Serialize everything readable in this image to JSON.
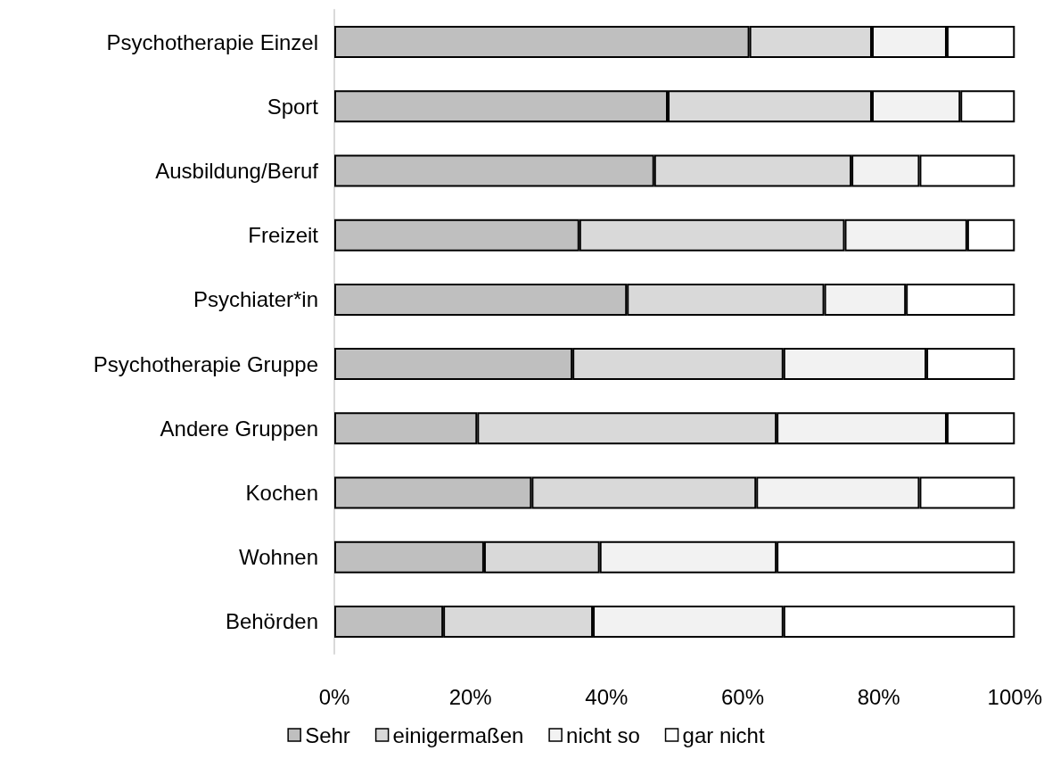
{
  "chart_data": {
    "type": "bar",
    "orientation": "horizontal",
    "stacked": true,
    "categories": [
      "Psychotherapie Einzel",
      "Sport",
      "Ausbildung/Beruf",
      "Freizeit",
      "Psychiater*in",
      "Psychotherapie Gruppe",
      "Andere Gruppen",
      "Kochen",
      "Wohnen",
      "Behörden"
    ],
    "series": [
      {
        "name": "Sehr",
        "color": "#bfbfbf",
        "values": [
          61,
          49,
          47,
          36,
          43,
          35,
          21,
          29,
          22,
          16
        ]
      },
      {
        "name": "einigermaßen",
        "color": "#d9d9d9",
        "values": [
          18,
          30,
          29,
          39,
          29,
          31,
          44,
          33,
          17,
          22
        ]
      },
      {
        "name": "nicht so",
        "color": "#f2f2f2",
        "values": [
          11,
          13,
          10,
          18,
          12,
          21,
          25,
          24,
          26,
          28
        ]
      },
      {
        "name": "gar nicht",
        "color": "#ffffff",
        "values": [
          10,
          8,
          14,
          7,
          16,
          13,
          10,
          14,
          35,
          34
        ]
      }
    ],
    "xlim": [
      0,
      100
    ],
    "xticks": [
      {
        "value": 0,
        "label": "0%"
      },
      {
        "value": 20,
        "label": "20%"
      },
      {
        "value": 40,
        "label": "40%"
      },
      {
        "value": 60,
        "label": "60%"
      },
      {
        "value": 80,
        "label": "80%"
      },
      {
        "value": 100,
        "label": "100%"
      }
    ],
    "grid": false,
    "legend": "bottom"
  }
}
